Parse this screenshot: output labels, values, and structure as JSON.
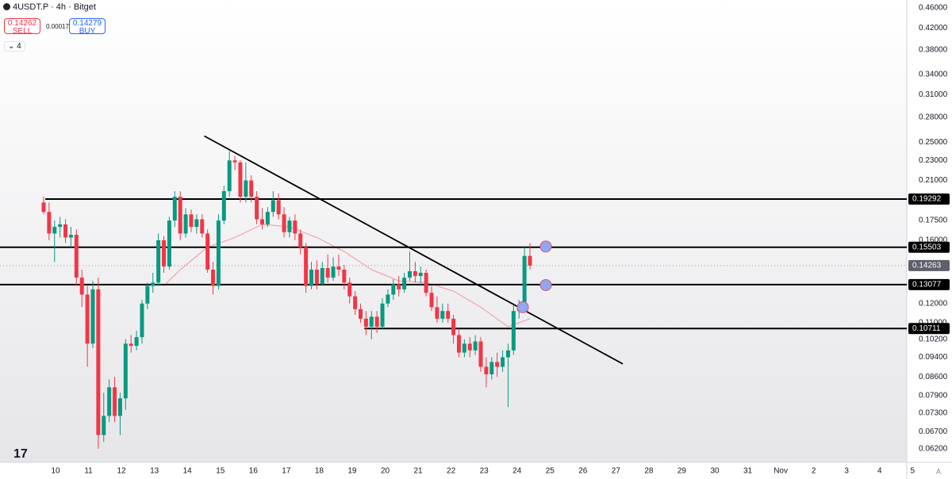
{
  "header": {
    "symbol": "4USDT.P · 4h · Bitget",
    "sell_price": "0.14262",
    "sell_label": "SELL",
    "spread": "0.00017",
    "buy_price": "0.14279",
    "buy_label": "BUY",
    "indicator_count": "4",
    "scale_mode": "A"
  },
  "chart_data": {
    "type": "candlestick",
    "log_scale": true,
    "grid": false,
    "up_color": "#089981",
    "down_color": "#f23645",
    "ma_color": "#f4a3ab",
    "line_color": "#000000",
    "ylim": [
      0.0583,
      0.4769
    ],
    "yticks": [
      {
        "value": 0.46,
        "label": "0.46000"
      },
      {
        "value": 0.42,
        "label": "0.42000"
      },
      {
        "value": 0.38,
        "label": "0.38000"
      },
      {
        "value": 0.34,
        "label": "0.34000"
      },
      {
        "value": 0.31,
        "label": "0.31000"
      },
      {
        "value": 0.28,
        "label": "0.28000"
      },
      {
        "value": 0.25,
        "label": "0.25000"
      },
      {
        "value": 0.23,
        "label": "0.23000"
      },
      {
        "value": 0.21,
        "label": "0.21000"
      },
      {
        "value": 0.175,
        "label": "0.17500"
      },
      {
        "value": 0.16,
        "label": "0.16000"
      },
      {
        "value": 0.12,
        "label": "0.12000"
      },
      {
        "value": 0.11,
        "label": "0.11000"
      },
      {
        "value": 0.102,
        "label": "0.10200"
      },
      {
        "value": 0.094,
        "label": "0.09400"
      },
      {
        "value": 0.086,
        "label": "0.08600"
      },
      {
        "value": 0.079,
        "label": "0.07900"
      },
      {
        "value": 0.073,
        "label": "0.07300"
      },
      {
        "value": 0.067,
        "label": "0.06700"
      },
      {
        "value": 0.062,
        "label": "0.06200"
      }
    ],
    "x_labels": [
      "10",
      "11",
      "12",
      "13",
      "14",
      "15",
      "16",
      "17",
      "18",
      "19",
      "20",
      "21",
      "22",
      "23",
      "24",
      "25",
      "26",
      "27",
      "28",
      "29",
      "30",
      "31",
      "Nov",
      "2",
      "3",
      "4",
      "5"
    ],
    "candles": [
      [
        0.19,
        0.195,
        0.18,
        0.182
      ],
      [
        0.182,
        0.19,
        0.16,
        0.165
      ],
      [
        0.165,
        0.175,
        0.145,
        0.17
      ],
      [
        0.17,
        0.178,
        0.162,
        0.172
      ],
      [
        0.172,
        0.176,
        0.158,
        0.162
      ],
      [
        0.162,
        0.17,
        0.155,
        0.164
      ],
      [
        0.164,
        0.168,
        0.13,
        0.135
      ],
      [
        0.135,
        0.14,
        0.118,
        0.125
      ],
      [
        0.125,
        0.13,
        0.09,
        0.1
      ],
      [
        0.1,
        0.133,
        0.098,
        0.128
      ],
      [
        0.128,
        0.135,
        0.062,
        0.066
      ],
      [
        0.066,
        0.08,
        0.064,
        0.072
      ],
      [
        0.072,
        0.085,
        0.07,
        0.082
      ],
      [
        0.082,
        0.086,
        0.07,
        0.072
      ],
      [
        0.072,
        0.08,
        0.066,
        0.078
      ],
      [
        0.078,
        0.102,
        0.074,
        0.1
      ],
      [
        0.1,
        0.104,
        0.096,
        0.099
      ],
      [
        0.099,
        0.106,
        0.097,
        0.103
      ],
      [
        0.103,
        0.122,
        0.1,
        0.12
      ],
      [
        0.12,
        0.132,
        0.117,
        0.13
      ],
      [
        0.13,
        0.138,
        0.126,
        0.132
      ],
      [
        0.132,
        0.165,
        0.13,
        0.16
      ],
      [
        0.16,
        0.163,
        0.138,
        0.142
      ],
      [
        0.142,
        0.178,
        0.14,
        0.175
      ],
      [
        0.175,
        0.2,
        0.17,
        0.195
      ],
      [
        0.195,
        0.2,
        0.16,
        0.165
      ],
      [
        0.165,
        0.185,
        0.162,
        0.18
      ],
      [
        0.18,
        0.184,
        0.166,
        0.17
      ],
      [
        0.17,
        0.18,
        0.165,
        0.176
      ],
      [
        0.176,
        0.18,
        0.162,
        0.165
      ],
      [
        0.165,
        0.168,
        0.138,
        0.14
      ],
      [
        0.14,
        0.145,
        0.125,
        0.13
      ],
      [
        0.13,
        0.18,
        0.128,
        0.175
      ],
      [
        0.175,
        0.205,
        0.172,
        0.2
      ],
      [
        0.2,
        0.24,
        0.195,
        0.23
      ],
      [
        0.23,
        0.235,
        0.22,
        0.228
      ],
      [
        0.228,
        0.23,
        0.19,
        0.195
      ],
      [
        0.195,
        0.228,
        0.19,
        0.21
      ],
      [
        0.21,
        0.215,
        0.19,
        0.195
      ],
      [
        0.195,
        0.2,
        0.172,
        0.176
      ],
      [
        0.176,
        0.185,
        0.168,
        0.172
      ],
      [
        0.172,
        0.186,
        0.17,
        0.182
      ],
      [
        0.182,
        0.2,
        0.178,
        0.192
      ],
      [
        0.192,
        0.198,
        0.176,
        0.18
      ],
      [
        0.18,
        0.186,
        0.162,
        0.166
      ],
      [
        0.166,
        0.178,
        0.162,
        0.175
      ],
      [
        0.175,
        0.18,
        0.16,
        0.165
      ],
      [
        0.165,
        0.168,
        0.15,
        0.155
      ],
      [
        0.155,
        0.158,
        0.126,
        0.13
      ],
      [
        0.13,
        0.145,
        0.128,
        0.14
      ],
      [
        0.14,
        0.146,
        0.128,
        0.131
      ],
      [
        0.131,
        0.145,
        0.13,
        0.141
      ],
      [
        0.141,
        0.15,
        0.132,
        0.135
      ],
      [
        0.135,
        0.148,
        0.133,
        0.142
      ],
      [
        0.142,
        0.15,
        0.136,
        0.14
      ],
      [
        0.14,
        0.143,
        0.128,
        0.132
      ],
      [
        0.132,
        0.135,
        0.12,
        0.124
      ],
      [
        0.124,
        0.127,
        0.114,
        0.117
      ],
      [
        0.117,
        0.12,
        0.11,
        0.112
      ],
      [
        0.112,
        0.116,
        0.104,
        0.108
      ],
      [
        0.108,
        0.116,
        0.102,
        0.113
      ],
      [
        0.113,
        0.116,
        0.105,
        0.108
      ],
      [
        0.108,
        0.123,
        0.107,
        0.12
      ],
      [
        0.12,
        0.128,
        0.118,
        0.125
      ],
      [
        0.125,
        0.134,
        0.122,
        0.131
      ],
      [
        0.131,
        0.136,
        0.124,
        0.128
      ],
      [
        0.128,
        0.138,
        0.126,
        0.135
      ],
      [
        0.135,
        0.152,
        0.133,
        0.139
      ],
      [
        0.139,
        0.145,
        0.132,
        0.136
      ],
      [
        0.136,
        0.142,
        0.13,
        0.138
      ],
      [
        0.138,
        0.14,
        0.124,
        0.126
      ],
      [
        0.126,
        0.13,
        0.116,
        0.118
      ],
      [
        0.118,
        0.124,
        0.11,
        0.112
      ],
      [
        0.112,
        0.12,
        0.11,
        0.116
      ],
      [
        0.116,
        0.12,
        0.11,
        0.112
      ],
      [
        0.112,
        0.114,
        0.1,
        0.104
      ],
      [
        0.104,
        0.107,
        0.094,
        0.096
      ],
      [
        0.096,
        0.102,
        0.094,
        0.1
      ],
      [
        0.1,
        0.103,
        0.094,
        0.097
      ],
      [
        0.097,
        0.104,
        0.095,
        0.101
      ],
      [
        0.101,
        0.103,
        0.088,
        0.09
      ],
      [
        0.09,
        0.094,
        0.082,
        0.087
      ],
      [
        0.087,
        0.094,
        0.085,
        0.092
      ],
      [
        0.092,
        0.096,
        0.086,
        0.09
      ],
      [
        0.09,
        0.097,
        0.088,
        0.094
      ],
      [
        0.094,
        0.1,
        0.075,
        0.097
      ],
      [
        0.097,
        0.12,
        0.095,
        0.116
      ],
      [
        0.116,
        0.122,
        0.112,
        0.118
      ],
      [
        0.118,
        0.155,
        0.116,
        0.149
      ],
      [
        0.149,
        0.158,
        0.14,
        0.1426
      ]
    ],
    "ma": [
      [
        22,
        0.13
      ],
      [
        25,
        0.14
      ],
      [
        30,
        0.155
      ],
      [
        35,
        0.162
      ],
      [
        40,
        0.172
      ],
      [
        45,
        0.17
      ],
      [
        50,
        0.162
      ],
      [
        55,
        0.152
      ],
      [
        60,
        0.14
      ],
      [
        65,
        0.133
      ],
      [
        70,
        0.132
      ],
      [
        75,
        0.127
      ],
      [
        80,
        0.118
      ],
      [
        85,
        0.108
      ],
      [
        89,
        0.112
      ]
    ],
    "trendline": [
      [
        29.4,
        0.257
      ],
      [
        106,
        0.0912
      ]
    ],
    "levels": [
      {
        "price": 0.19292,
        "start": 0.3
      },
      {
        "price": 0.15503,
        "start": -8
      },
      {
        "price": 0.13077,
        "start": -8
      },
      {
        "price": 0.10711,
        "start": 58.7
      }
    ],
    "current_price": 0.14263,
    "markers": [
      [
        91.9,
        0.1555
      ],
      [
        91.9,
        0.1305
      ],
      [
        87.7,
        0.118
      ]
    ]
  }
}
